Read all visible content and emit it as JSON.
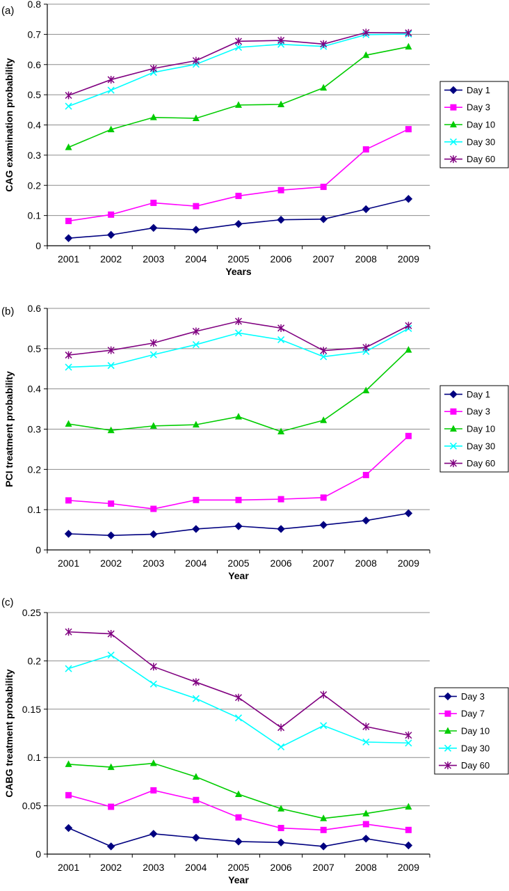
{
  "chart_data": [
    {
      "type": "line",
      "panel_label": "(a)",
      "xlabel": "Years",
      "ylabel": "CAG examination probability",
      "ylim": [
        0,
        0.8
      ],
      "yticks": [
        0,
        0.1,
        0.2,
        0.3,
        0.4,
        0.5,
        0.6,
        0.7,
        0.8
      ],
      "ytick_labels": [
        "0",
        "0.1",
        "0.2",
        "0.3",
        "0.4",
        "0.5",
        "0.6",
        "0.7",
        "0.8"
      ],
      "categories": [
        "2001",
        "2002",
        "2003",
        "2004",
        "2005",
        "2006",
        "2007",
        "2008",
        "2009"
      ],
      "grid": "horizontal",
      "legend_position": "right",
      "series": [
        {
          "name": "Day 1",
          "color": "#000080",
          "marker": "diamond",
          "values": [
            0.025,
            0.036,
            0.059,
            0.053,
            0.072,
            0.086,
            0.088,
            0.121,
            0.155
          ]
        },
        {
          "name": "Day 3",
          "color": "#FF00FF",
          "marker": "square",
          "values": [
            0.082,
            0.103,
            0.142,
            0.131,
            0.165,
            0.184,
            0.195,
            0.319,
            0.386
          ]
        },
        {
          "name": "Day 10",
          "color": "#00CC00",
          "marker": "triangle",
          "values": [
            0.326,
            0.385,
            0.425,
            0.422,
            0.466,
            0.468,
            0.523,
            0.631,
            0.659
          ]
        },
        {
          "name": "Day 30",
          "color": "#00FFFF",
          "marker": "x",
          "values": [
            0.462,
            0.515,
            0.574,
            0.601,
            0.657,
            0.667,
            0.66,
            0.699,
            0.701
          ]
        },
        {
          "name": "Day 60",
          "color": "#800080",
          "marker": "star",
          "values": [
            0.498,
            0.55,
            0.587,
            0.613,
            0.677,
            0.68,
            0.668,
            0.706,
            0.705
          ]
        }
      ]
    },
    {
      "type": "line",
      "panel_label": "(b)",
      "xlabel": "Year",
      "ylabel": "PCI treatment probability",
      "ylim": [
        0,
        0.6
      ],
      "yticks": [
        0,
        0.1,
        0.2,
        0.3,
        0.4,
        0.5,
        0.6
      ],
      "ytick_labels": [
        "0",
        "0.1",
        "0.2",
        "0.3",
        "0.4",
        "0.5",
        "0.6"
      ],
      "categories": [
        "2001",
        "2002",
        "2003",
        "2004",
        "2005",
        "2006",
        "2007",
        "2008",
        "2009"
      ],
      "grid": "horizontal",
      "legend_position": "right",
      "series": [
        {
          "name": "Day 1",
          "color": "#000080",
          "marker": "diamond",
          "values": [
            0.04,
            0.036,
            0.039,
            0.052,
            0.059,
            0.052,
            0.062,
            0.073,
            0.091
          ]
        },
        {
          "name": "Day 3",
          "color": "#FF00FF",
          "marker": "square",
          "values": [
            0.123,
            0.115,
            0.102,
            0.124,
            0.124,
            0.126,
            0.13,
            0.186,
            0.283
          ]
        },
        {
          "name": "Day 10",
          "color": "#00CC00",
          "marker": "triangle",
          "values": [
            0.313,
            0.297,
            0.308,
            0.311,
            0.331,
            0.294,
            0.322,
            0.396,
            0.497
          ]
        },
        {
          "name": "Day 30",
          "color": "#00FFFF",
          "marker": "x",
          "values": [
            0.454,
            0.458,
            0.485,
            0.51,
            0.539,
            0.522,
            0.48,
            0.493,
            0.55
          ]
        },
        {
          "name": "Day 60",
          "color": "#800080",
          "marker": "star",
          "values": [
            0.484,
            0.496,
            0.514,
            0.543,
            0.568,
            0.551,
            0.495,
            0.503,
            0.557
          ]
        }
      ]
    },
    {
      "type": "line",
      "panel_label": "(c)",
      "xlabel": "Year",
      "ylabel": "CABG treatment probability",
      "ylim": [
        0,
        0.25
      ],
      "yticks": [
        0,
        0.05,
        0.1,
        0.15,
        0.2,
        0.25
      ],
      "ytick_labels": [
        "0",
        "0.05",
        "0.1",
        "0.15",
        "0.2",
        "0.25"
      ],
      "categories": [
        "2001",
        "2002",
        "2003",
        "2004",
        "2005",
        "2006",
        "2007",
        "2008",
        "2009"
      ],
      "grid": "horizontal",
      "legend_position": "right",
      "series": [
        {
          "name": "Day 3",
          "color": "#000080",
          "marker": "diamond",
          "values": [
            0.027,
            0.008,
            0.021,
            0.017,
            0.013,
            0.012,
            0.008,
            0.016,
            0.009
          ]
        },
        {
          "name": "Day 7",
          "color": "#FF00FF",
          "marker": "square",
          "values": [
            0.061,
            0.049,
            0.066,
            0.056,
            0.038,
            0.027,
            0.025,
            0.031,
            0.025
          ]
        },
        {
          "name": "Day 10",
          "color": "#00CC00",
          "marker": "triangle",
          "values": [
            0.093,
            0.09,
            0.094,
            0.08,
            0.062,
            0.047,
            0.037,
            0.042,
            0.049
          ]
        },
        {
          "name": "Day 30",
          "color": "#00FFFF",
          "marker": "x",
          "values": [
            0.192,
            0.206,
            0.176,
            0.161,
            0.141,
            0.111,
            0.133,
            0.116,
            0.115
          ]
        },
        {
          "name": "Day 60",
          "color": "#800080",
          "marker": "star",
          "values": [
            0.23,
            0.228,
            0.194,
            0.178,
            0.162,
            0.131,
            0.165,
            0.132,
            0.123
          ]
        }
      ]
    }
  ]
}
